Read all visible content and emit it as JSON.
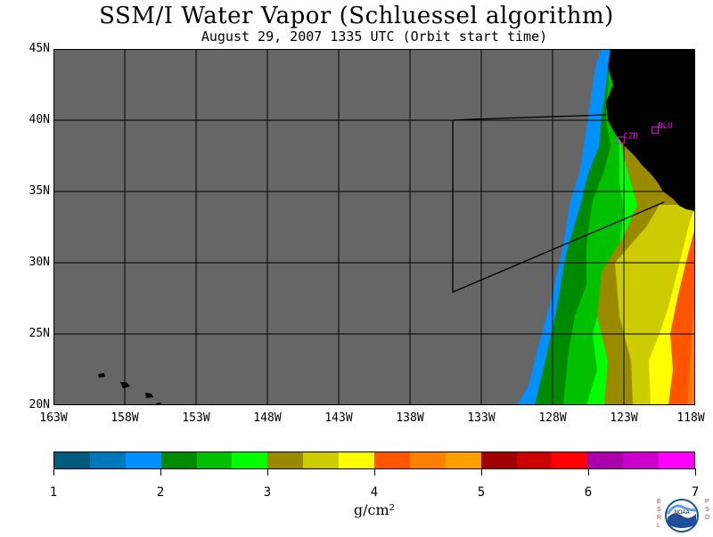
{
  "title": "SSM/I Water Vapor (Schluessel algorithm)",
  "subtitle": "August 29, 2007  1335 UTC  (Orbit start time)",
  "map": {
    "lat_labels": [
      "45N",
      "40N",
      "35N",
      "30N",
      "25N",
      "20N"
    ],
    "lon_labels": [
      "163W",
      "158W",
      "153W",
      "148W",
      "143W",
      "138W",
      "133W",
      "128W",
      "123W",
      "118W"
    ],
    "lat_range": [
      20,
      45
    ],
    "lon_range": [
      -163,
      -118
    ],
    "sites": [
      {
        "label": "CZD",
        "lat": 38.6,
        "lon": -123.2
      },
      {
        "label": "BLU",
        "lat": 39.3,
        "lon": -120.8
      }
    ],
    "no_data_color": "#666666",
    "land_color": "#000000",
    "site_color": "#ff00ff"
  },
  "colorbar": {
    "colors": [
      "#005c7d",
      "#0077bb",
      "#0090ff",
      "#008a00",
      "#00c000",
      "#00ff00",
      "#9a8a00",
      "#cccc00",
      "#ffff00",
      "#ff5500",
      "#ff7f00",
      "#ffa000",
      "#a00000",
      "#cc0000",
      "#ff0000",
      "#aa00aa",
      "#cc00cc",
      "#ff00ff"
    ],
    "labels": [
      "1",
      "2",
      "3",
      "4",
      "5",
      "6",
      "7"
    ],
    "unit": "g/cm²"
  },
  "logo": {
    "left_text": "ESRL",
    "right_text": "PSD",
    "center_text": "NOAA"
  }
}
